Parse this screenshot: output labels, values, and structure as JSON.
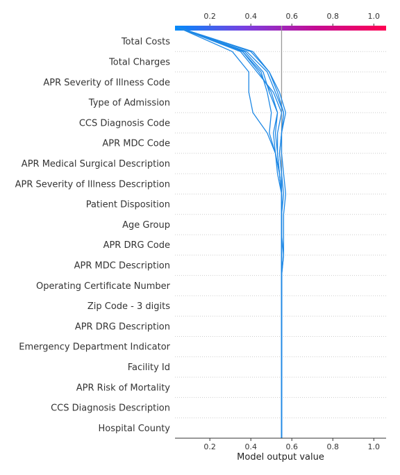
{
  "chart_data": {
    "type": "line",
    "title": "",
    "xlabel": "Model output value",
    "ylabel": "",
    "xlim": [
      0.03,
      1.06
    ],
    "x_ticks": [
      "0.2",
      "0.4",
      "0.6",
      "0.8",
      "1.0"
    ],
    "x_tick_values": [
      0.2,
      0.4,
      0.6,
      0.8,
      1.0
    ],
    "base_value": 0.55,
    "colormap": [
      "#008bfb",
      "#7a3fe0",
      "#c40c93",
      "#ff0052"
    ],
    "line_color": "#1e88e5",
    "grid": "dotted horizontal",
    "features": [
      "Total Costs",
      "Total Charges",
      "APR Severity of Illness Code",
      "Type of Admission",
      "CCS Diagnosis Code",
      "APR MDC Code",
      "APR Medical Surgical Description",
      "APR Severity of Illness Description",
      "Patient Disposition",
      "Age Group",
      "APR DRG Code",
      "APR MDC Description",
      "Operating Certificate Number",
      "Zip Code - 3 digits",
      "APR DRG Description",
      "Emergency Department Indicator",
      "Facility Id",
      "APR Risk of Mortality",
      "CCS Diagnosis Description",
      "Hospital County"
    ],
    "series": [
      {
        "values": [
          0.04,
          0.31,
          0.39,
          0.39,
          0.41,
          0.48,
          0.52,
          0.54,
          0.55,
          0.55,
          0.55,
          0.55,
          0.55,
          0.55,
          0.55,
          0.55,
          0.55,
          0.55,
          0.55,
          0.55,
          0.55
        ]
      },
      {
        "values": [
          0.04,
          0.36,
          0.45,
          0.48,
          0.5,
          0.49,
          0.52,
          0.53,
          0.55,
          0.55,
          0.55,
          0.55,
          0.55,
          0.55,
          0.55,
          0.55,
          0.55,
          0.55,
          0.55,
          0.55,
          0.55
        ]
      },
      {
        "values": [
          0.04,
          0.37,
          0.46,
          0.49,
          0.53,
          0.52,
          0.53,
          0.54,
          0.55,
          0.55,
          0.55,
          0.55,
          0.55,
          0.55,
          0.55,
          0.55,
          0.55,
          0.55,
          0.55,
          0.55,
          0.55
        ]
      },
      {
        "values": [
          0.04,
          0.38,
          0.48,
          0.52,
          0.56,
          0.55,
          0.55,
          0.56,
          0.57,
          0.56,
          0.56,
          0.56,
          0.55,
          0.55,
          0.55,
          0.55,
          0.55,
          0.55,
          0.55,
          0.55,
          0.55
        ]
      },
      {
        "values": [
          0.04,
          0.4,
          0.49,
          0.53,
          0.56,
          0.55,
          0.54,
          0.55,
          0.56,
          0.55,
          0.55,
          0.56,
          0.55,
          0.55,
          0.55,
          0.55,
          0.55,
          0.55,
          0.55,
          0.55,
          0.55
        ]
      },
      {
        "values": [
          0.04,
          0.41,
          0.49,
          0.54,
          0.57,
          0.55,
          0.54,
          0.55,
          0.55,
          0.55,
          0.55,
          0.55,
          0.55,
          0.55,
          0.55,
          0.55,
          0.55,
          0.55,
          0.55,
          0.55,
          0.55
        ]
      },
      {
        "values": [
          0.04,
          0.36,
          0.44,
          0.5,
          0.53,
          0.51,
          0.52,
          0.54,
          0.55,
          0.55,
          0.55,
          0.55,
          0.55,
          0.55,
          0.55,
          0.55,
          0.55,
          0.55,
          0.55,
          0.55,
          0.55
        ]
      },
      {
        "values": [
          0.04,
          0.35,
          0.43,
          0.51,
          0.55,
          0.53,
          0.53,
          0.54,
          0.55,
          0.55,
          0.55,
          0.55,
          0.55,
          0.55,
          0.55,
          0.55,
          0.55,
          0.55,
          0.55,
          0.55,
          0.55
        ]
      }
    ]
  }
}
